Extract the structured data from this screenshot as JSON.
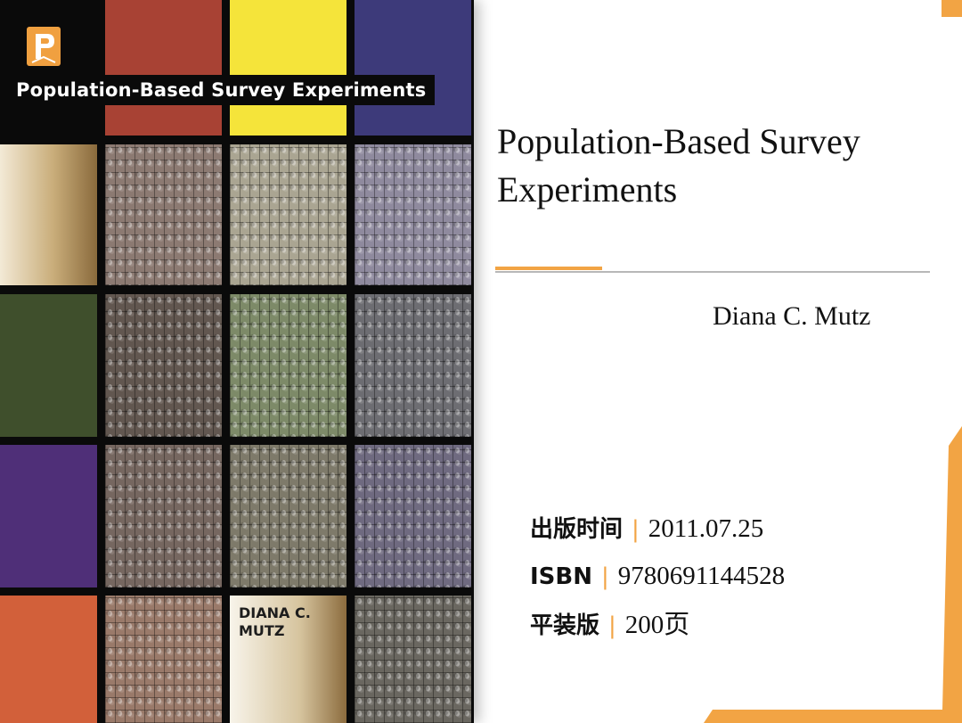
{
  "cover": {
    "publisher_logo": "princeton-p-logo",
    "title": "Population-Based Survey Experiments",
    "author": "DIANA C.\nMUTZ"
  },
  "book": {
    "title": "Population-Based Survey Experiments",
    "author": "Diana C. Mutz"
  },
  "details": [
    {
      "label": "出版时间",
      "value": "2011.07.25"
    },
    {
      "label": "ISBN",
      "value": "9780691144528"
    },
    {
      "label": "平装版",
      "value": "200页"
    }
  ],
  "separator": "|",
  "colors": {
    "accent": "#f2a444",
    "rule": "#b8b8b8",
    "text": "#111111"
  }
}
